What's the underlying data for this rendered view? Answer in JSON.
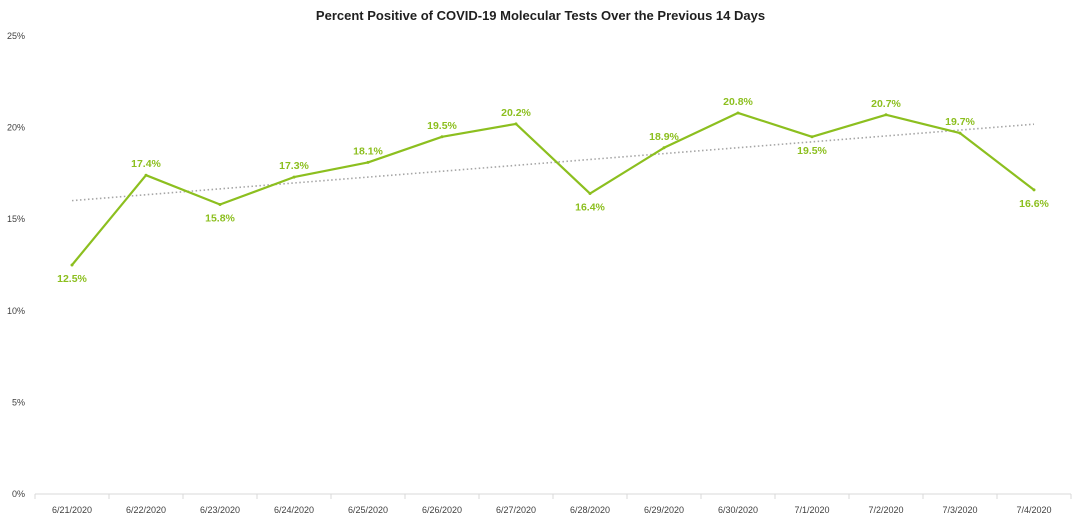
{
  "chart_data": {
    "type": "line",
    "title": "Percent Positive of COVID-19 Molecular Tests Over the Previous 14 Days",
    "xlabel": "",
    "ylabel": "",
    "categories": [
      "6/21/2020",
      "6/22/2020",
      "6/23/2020",
      "6/24/2020",
      "6/25/2020",
      "6/26/2020",
      "6/27/2020",
      "6/28/2020",
      "6/29/2020",
      "6/30/2020",
      "7/1/2020",
      "7/2/2020",
      "7/3/2020",
      "7/4/2020"
    ],
    "series": [
      {
        "values": [
          12.5,
          17.4,
          15.8,
          17.3,
          18.1,
          19.5,
          20.2,
          16.4,
          18.9,
          20.8,
          19.5,
          20.7,
          19.7,
          16.6
        ],
        "labels": [
          "12.5%",
          "17.4%",
          "15.8%",
          "17.3%",
          "18.1%",
          "19.5%",
          "20.2%",
          "16.4%",
          "18.9%",
          "20.8%",
          "19.5%",
          "20.7%",
          "19.7%",
          "16.6%"
        ],
        "color": "#8cbf1f"
      }
    ],
    "trendline": {
      "type": "linear",
      "style": "dotted",
      "color": "#a6a6a6"
    },
    "ylim": [
      0,
      25
    ],
    "yticks": [
      0,
      5,
      10,
      15,
      20,
      25
    ],
    "ytick_labels": [
      "0%",
      "5%",
      "10%",
      "15%",
      "20%",
      "25%"
    ],
    "grid": false,
    "legend": "none"
  }
}
